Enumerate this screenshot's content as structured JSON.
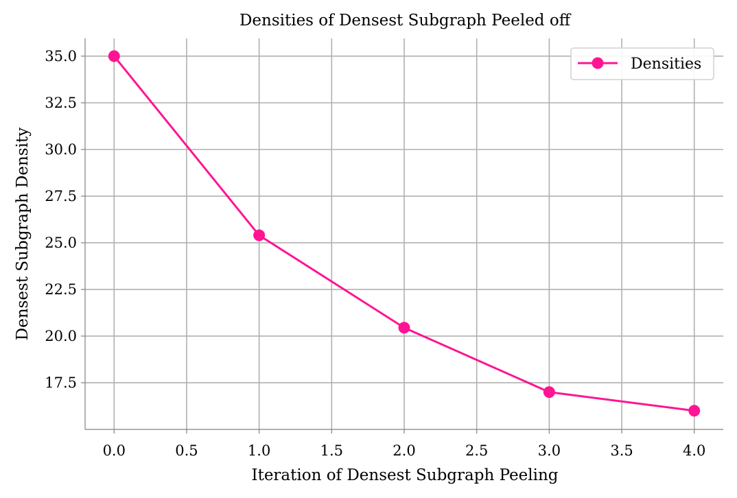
{
  "chart_data": {
    "type": "line",
    "title": "Densities of Densest Subgraph Peeled off",
    "xlabel": "Iteration of Densest Subgraph Peeling",
    "ylabel": "Densest Subgraph Density",
    "xlim": [
      -0.2,
      4.2
    ],
    "ylim": [
      15.0,
      35.95
    ],
    "x_ticks": [
      0.0,
      0.5,
      1.0,
      1.5,
      2.0,
      2.5,
      3.0,
      3.5,
      4.0
    ],
    "x_tick_labels": [
      "0.0",
      "0.5",
      "1.0",
      "1.5",
      "2.0",
      "2.5",
      "3.0",
      "3.5",
      "4.0"
    ],
    "y_ticks": [
      17.5,
      20.0,
      22.5,
      25.0,
      27.5,
      30.0,
      32.5,
      35.0
    ],
    "y_tick_labels": [
      "17.5",
      "20.0",
      "22.5",
      "25.0",
      "27.5",
      "30.0",
      "32.5",
      "35.0"
    ],
    "grid": true,
    "legend_position": "top-right",
    "series": [
      {
        "name": "Densities",
        "color": "#ff1493",
        "marker": "circle",
        "x": [
          0,
          1,
          2,
          3,
          4
        ],
        "y": [
          35.0,
          25.4,
          20.45,
          17.0,
          16.0
        ]
      }
    ]
  }
}
